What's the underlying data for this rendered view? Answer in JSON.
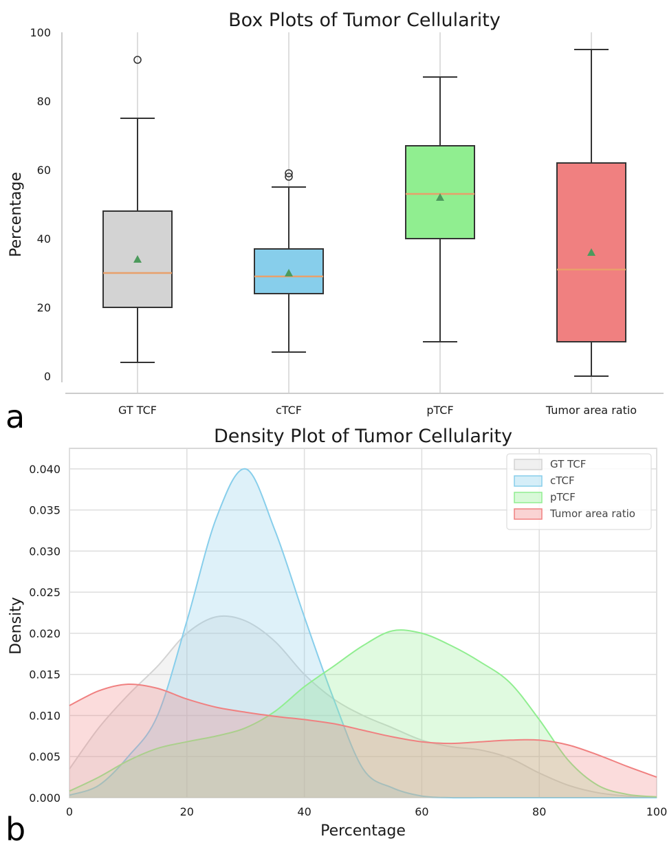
{
  "panel_labels": {
    "a": "a",
    "b": "b"
  },
  "colors": {
    "gt": "#d3d3d3",
    "ctcf": "#87ceeb",
    "ptcf": "#90ee90",
    "tumor": "#f08080",
    "median": "#e8a06b",
    "mean": "#4c9a5c",
    "grid": "#dddddd",
    "axis": "#cccccc"
  },
  "chart_data": [
    {
      "type": "box",
      "title": "Box Plots of Tumor Cellularity",
      "xlabel": "",
      "ylabel": "Percentage",
      "ylim": [
        -2,
        100
      ],
      "yticks": [
        0,
        20,
        40,
        60,
        80,
        100
      ],
      "ytick_labels": [
        "0",
        "20",
        "40",
        "60",
        "80",
        "100"
      ],
      "grid": "vertical lines at categories",
      "categories": [
        "GT TCF",
        "cTCF",
        "pTCF",
        "Tumor area ratio"
      ],
      "series": [
        {
          "name": "GT TCF",
          "whisker_low": 4,
          "q1": 20,
          "median": 30,
          "q3": 48,
          "whisker_high": 75,
          "mean": 34,
          "outliers": [
            92
          ],
          "color": "#d3d3d3"
        },
        {
          "name": "cTCF",
          "whisker_low": 7,
          "q1": 24,
          "median": 29,
          "q3": 37,
          "whisker_high": 55,
          "mean": 30,
          "outliers": [
            58,
            59
          ],
          "color": "#87ceeb"
        },
        {
          "name": "pTCF",
          "whisker_low": 10,
          "q1": 40,
          "median": 53,
          "q3": 67,
          "whisker_high": 87,
          "mean": 52,
          "outliers": [],
          "color": "#90ee90"
        },
        {
          "name": "Tumor area ratio",
          "whisker_low": 0,
          "q1": 10,
          "median": 31,
          "q3": 62,
          "whisker_high": 95,
          "mean": 36,
          "outliers": [],
          "color": "#f08080"
        }
      ]
    },
    {
      "type": "area",
      "title": "Density Plot of Tumor Cellularity",
      "xlabel": "Percentage",
      "ylabel": "Density",
      "xlim": [
        0,
        100
      ],
      "ylim": [
        0,
        0.0425
      ],
      "xticks": [
        0,
        20,
        40,
        60,
        80,
        100
      ],
      "xtick_labels": [
        "0",
        "20",
        "40",
        "60",
        "80",
        "100"
      ],
      "yticks": [
        0,
        0.005,
        0.01,
        0.015,
        0.02,
        0.025,
        0.03,
        0.035,
        0.04
      ],
      "ytick_labels": [
        "0.000",
        "0.005",
        "0.010",
        "0.015",
        "0.020",
        "0.025",
        "0.030",
        "0.035",
        "0.040"
      ],
      "grid": true,
      "legend": "top-right",
      "x": [
        0,
        5,
        10,
        15,
        20,
        25,
        30,
        35,
        40,
        45,
        50,
        55,
        60,
        65,
        70,
        75,
        80,
        85,
        90,
        95,
        100
      ],
      "series": [
        {
          "name": "GT TCF",
          "color": "#d3d3d3",
          "values": [
            0.0035,
            0.0085,
            0.0125,
            0.016,
            0.02,
            0.022,
            0.0215,
            0.019,
            0.015,
            0.012,
            0.01,
            0.0085,
            0.007,
            0.0062,
            0.0058,
            0.0048,
            0.003,
            0.0015,
            0.0006,
            0.0002,
            0.0
          ]
        },
        {
          "name": "cTCF",
          "color": "#87ceeb",
          "values": [
            0.0003,
            0.0015,
            0.005,
            0.01,
            0.0215,
            0.034,
            0.04,
            0.0325,
            0.022,
            0.012,
            0.0035,
            0.0012,
            0.0002,
            0.0,
            0.0,
            0.0,
            0.0,
            0.0,
            0.0,
            0.0,
            0.0
          ]
        },
        {
          "name": "pTCF",
          "color": "#90ee90",
          "values": [
            0.0008,
            0.0025,
            0.0045,
            0.006,
            0.0068,
            0.0075,
            0.0085,
            0.0105,
            0.0135,
            0.016,
            0.0185,
            0.0203,
            0.02,
            0.0185,
            0.0165,
            0.014,
            0.0095,
            0.0045,
            0.0015,
            0.0004,
            0.0001
          ]
        },
        {
          "name": "Tumor area ratio",
          "color": "#f08080",
          "values": [
            0.0112,
            0.013,
            0.0138,
            0.0133,
            0.012,
            0.011,
            0.0104,
            0.0099,
            0.0095,
            0.009,
            0.0082,
            0.0074,
            0.0068,
            0.0066,
            0.0068,
            0.007,
            0.007,
            0.0064,
            0.0052,
            0.0038,
            0.0025
          ]
        }
      ]
    }
  ]
}
